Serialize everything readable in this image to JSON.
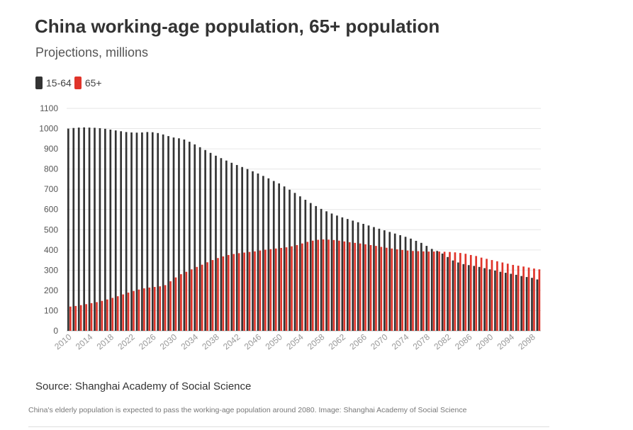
{
  "header": {
    "title": "China working-age population, 65+ population",
    "subtitle": "Projections, millions"
  },
  "legend": {
    "items": [
      {
        "label": "15-64",
        "color": "#333333"
      },
      {
        "label": "65+",
        "color": "#e0342a"
      }
    ]
  },
  "footer": {
    "source": "Source: Shanghai Academy of Social Science",
    "caption": "China's elderly population is expected to pass the working-age population around 2080. Image: Shanghai Academy of Social Science"
  },
  "chart_data": {
    "type": "bar",
    "title": "China working-age population, 65+ population",
    "subtitle": "Projections, millions",
    "xlabel": "",
    "ylabel": "",
    "ylim": [
      0,
      1100
    ],
    "yticks": [
      0,
      100,
      200,
      300,
      400,
      500,
      600,
      700,
      800,
      900,
      1000,
      1100
    ],
    "xtick_labels": [
      "2010",
      "2014",
      "2018",
      "2022",
      "2026",
      "2030",
      "2034",
      "2038",
      "2042",
      "2046",
      "2050",
      "2054",
      "2058",
      "2062",
      "2066",
      "2070",
      "2074",
      "2078",
      "2082",
      "2086",
      "2090",
      "2094",
      "2098"
    ],
    "grid": true,
    "legend_position": "top-left",
    "categories": [
      2010,
      2011,
      2012,
      2013,
      2014,
      2015,
      2016,
      2017,
      2018,
      2019,
      2020,
      2021,
      2022,
      2023,
      2024,
      2025,
      2026,
      2027,
      2028,
      2029,
      2030,
      2031,
      2032,
      2033,
      2034,
      2035,
      2036,
      2037,
      2038,
      2039,
      2040,
      2041,
      2042,
      2043,
      2044,
      2045,
      2046,
      2047,
      2048,
      2049,
      2050,
      2051,
      2052,
      2053,
      2054,
      2055,
      2056,
      2057,
      2058,
      2059,
      2060,
      2061,
      2062,
      2063,
      2064,
      2065,
      2066,
      2067,
      2068,
      2069,
      2070,
      2071,
      2072,
      2073,
      2074,
      2075,
      2076,
      2077,
      2078,
      2079,
      2080,
      2081,
      2082,
      2083,
      2084,
      2085,
      2086,
      2087,
      2088,
      2089,
      2090,
      2091,
      2092,
      2093,
      2094,
      2095,
      2096,
      2097,
      2098,
      2099
    ],
    "series": [
      {
        "name": "15-64",
        "color": "#333333",
        "values": [
          1000,
          1003,
          1005,
          1006,
          1005,
          1004,
          1002,
          999,
          995,
          991,
          987,
          983,
          981,
          980,
          981,
          983,
          982,
          978,
          971,
          963,
          956,
          952,
          946,
          935,
          922,
          908,
          894,
          880,
          866,
          854,
          842,
          831,
          820,
          810,
          800,
          789,
          778,
          766,
          754,
          741,
          729,
          714,
          698,
          682,
          665,
          648,
          632,
          617,
          603,
          591,
          580,
          570,
          561,
          553,
          545,
          537,
          529,
          521,
          513,
          505,
          497,
          489,
          481,
          473,
          465,
          456,
          445,
          435,
          420,
          405,
          395,
          382,
          365,
          348,
          338,
          330,
          325,
          321,
          316,
          310,
          304,
          298,
          292,
          287,
          282,
          277,
          271,
          266,
          262,
          254
        ]
      },
      {
        "name": "65+",
        "color": "#e0342a",
        "values": [
          120,
          123,
          127,
          132,
          137,
          142,
          148,
          155,
          163,
          171,
          180,
          189,
          197,
          204,
          210,
          214,
          217,
          220,
          226,
          245,
          264,
          280,
          292,
          304,
          316,
          327,
          339,
          350,
          360,
          368,
          375,
          380,
          384,
          387,
          390,
          393,
          397,
          401,
          404,
          407,
          410,
          413,
          418,
          424,
          432,
          440,
          446,
          450,
          452,
          451,
          449,
          446,
          442,
          438,
          435,
          432,
          428,
          424,
          420,
          415,
          411,
          407,
          403,
          400,
          397,
          395,
          394,
          393,
          392,
          392,
          392,
          391,
          390,
          388,
          385,
          381,
          375,
          370,
          362,
          356,
          350,
          344,
          338,
          332,
          326,
          322,
          318,
          313,
          308,
          304
        ]
      }
    ]
  }
}
